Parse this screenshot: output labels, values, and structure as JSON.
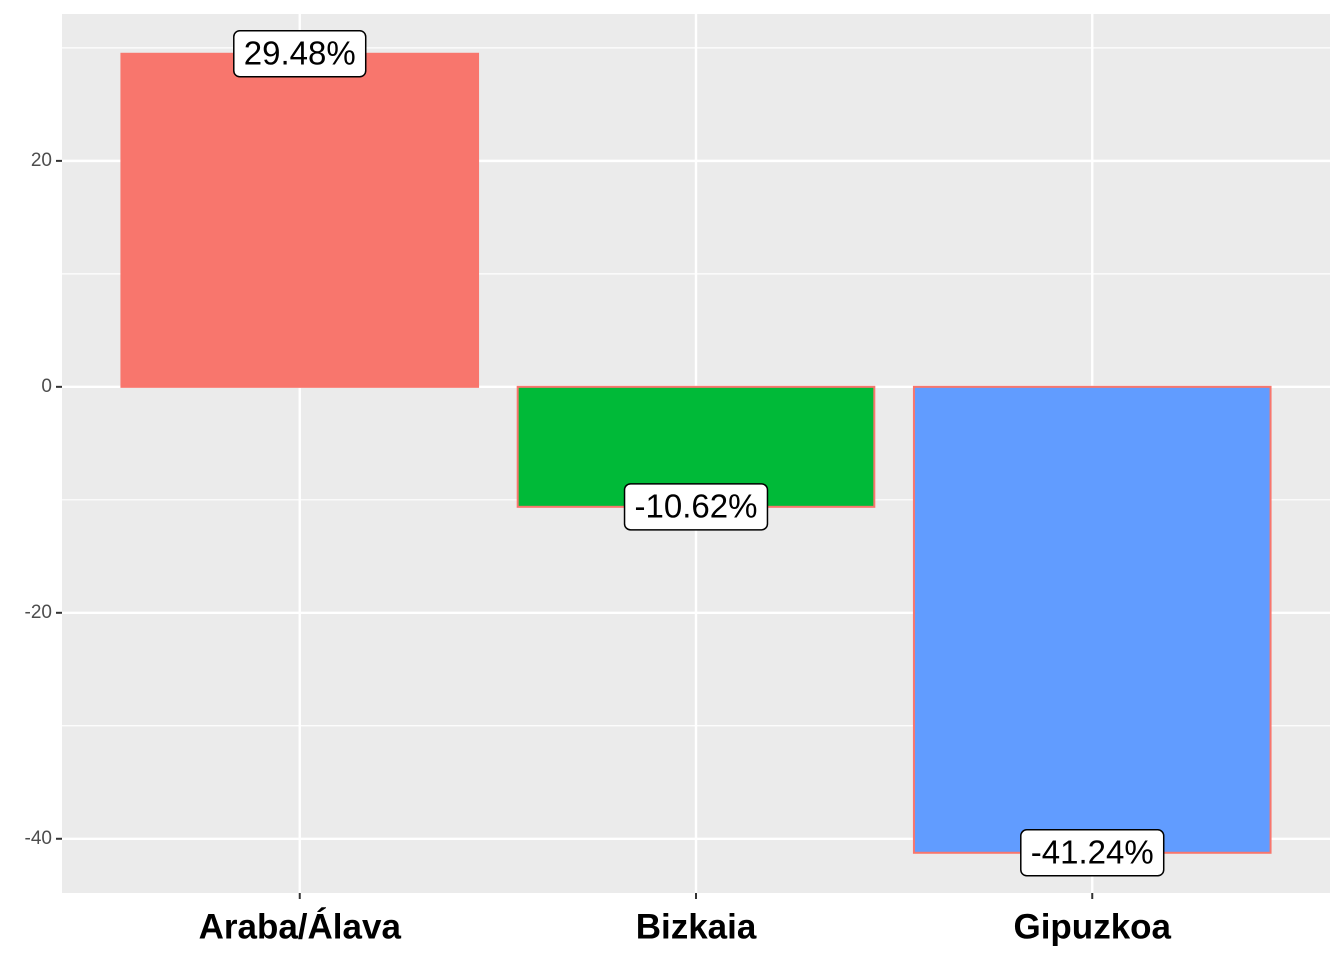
{
  "chart_data": {
    "type": "bar",
    "categories": [
      "Araba/Álava",
      "Bizkaia",
      "Gipuzkoa"
    ],
    "values": [
      29.48,
      -10.62,
      -41.24
    ],
    "value_labels": [
      "29.48%",
      "-10.62%",
      "-41.24%"
    ],
    "colors": [
      "#F8766D",
      "#00BA38",
      "#619CFF"
    ],
    "outline_color": "#F8766D",
    "ylim": [
      -44.8,
      33.0
    ],
    "yticks": [
      -40,
      -20,
      0,
      20
    ],
    "minor_yticks": [
      -30,
      -10,
      10,
      30
    ],
    "grid": true
  }
}
